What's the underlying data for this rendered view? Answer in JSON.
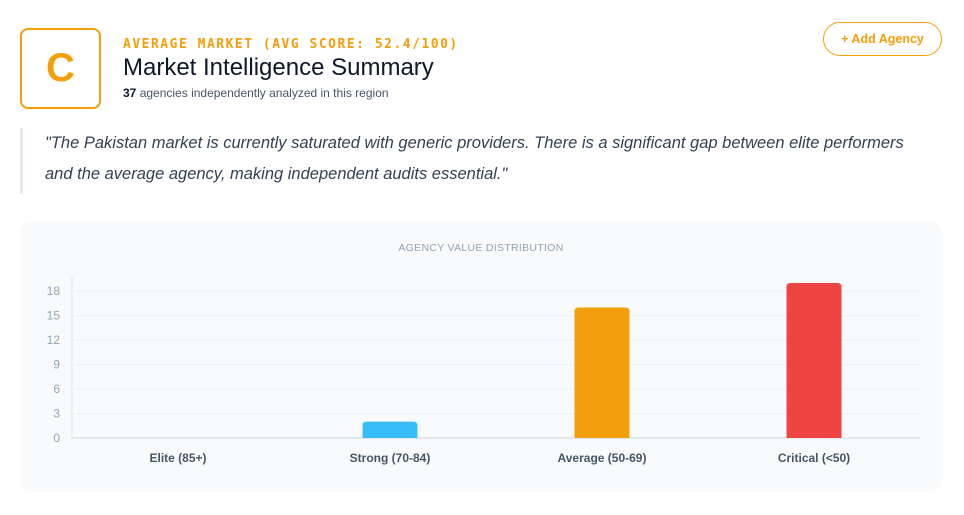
{
  "header": {
    "grade": "C",
    "eyebrow": "AVERAGE MARKET (AVG SCORE: 52.4/100)",
    "title": "Market Intelligence Summary",
    "agency_count": "37",
    "subtitle_rest": " agencies independently analyzed in this region",
    "add_button": "+ Add Agency"
  },
  "quote": "\"The Pakistan market is currently saturated with generic providers. There is a significant gap between elite performers and the average agency, making independent audits essential.\"",
  "colors": {
    "accent": "#f59e0b",
    "bar_elite": "#22c55e",
    "bar_strong": "#38bdf8",
    "bar_average": "#f59e0b",
    "bar_critical": "#ef4444"
  },
  "chart_data": {
    "type": "bar",
    "title": "AGENCY VALUE DISTRIBUTION",
    "categories": [
      "Elite (85+)",
      "Strong (70-84)",
      "Average (50-69)",
      "Critical (<50)"
    ],
    "values": [
      0,
      2,
      16,
      19
    ],
    "bar_colors": [
      "#22c55e",
      "#38bdf8",
      "#f59e0b",
      "#ef4444"
    ],
    "yticks": [
      0,
      3,
      6,
      9,
      12,
      15,
      18
    ],
    "ylim": [
      0,
      19
    ],
    "grid": true,
    "legend": "none"
  }
}
